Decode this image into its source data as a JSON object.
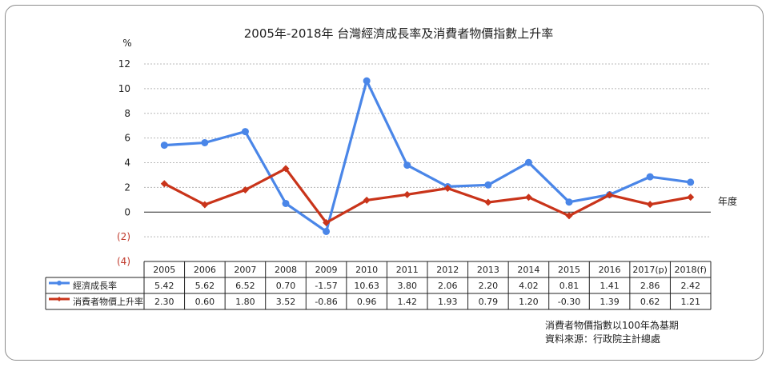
{
  "chart_data": {
    "type": "line",
    "title": "2005年-2018年 台灣經濟成長率及消費者物價指數上升率",
    "ylabel": "%",
    "xlabel": "年度",
    "ylim": [
      -4,
      12
    ],
    "yticks": [
      12,
      10,
      8,
      6,
      4,
      2,
      0,
      -2,
      -4
    ],
    "ytick_labels": [
      "12",
      "10",
      "8",
      "6",
      "4",
      "2",
      "0",
      "(2)",
      "(4)"
    ],
    "categories": [
      "2005",
      "2006",
      "2007",
      "2008",
      "2009",
      "2010",
      "2011",
      "2012",
      "2013",
      "2014",
      "2015",
      "2016",
      "2017(p)",
      "2018(f)"
    ],
    "series": [
      {
        "name": "經濟成長率",
        "color": "#4a86e8",
        "marker": "circle",
        "values": [
          5.42,
          5.62,
          6.52,
          0.7,
          -1.57,
          10.63,
          3.8,
          2.06,
          2.2,
          4.02,
          0.81,
          1.41,
          2.86,
          2.42
        ],
        "labels": [
          "5.42",
          "5.62",
          "6.52",
          "0.70",
          "-1.57",
          "10.63",
          "3.80",
          "2.06",
          "2.20",
          "4.02",
          "0.81",
          "1.41",
          "2.86",
          "2.42"
        ]
      },
      {
        "name": "消費者物價上升率",
        "color": "#c9341a",
        "marker": "diamond",
        "values": [
          2.3,
          0.6,
          1.8,
          3.52,
          -0.86,
          0.96,
          1.42,
          1.93,
          0.79,
          1.2,
          -0.3,
          1.39,
          0.62,
          1.21
        ],
        "labels": [
          "2.30",
          "0.60",
          "1.80",
          "3.52",
          "-0.86",
          "0.96",
          "1.42",
          "1.93",
          "0.79",
          "1.20",
          "-0.30",
          "1.39",
          "0.62",
          "1.21"
        ]
      }
    ],
    "grid": true,
    "legend": "data-table",
    "notes": [
      "消費者物價指數以100年為基期",
      "資料來源：行政院主計總處"
    ]
  }
}
